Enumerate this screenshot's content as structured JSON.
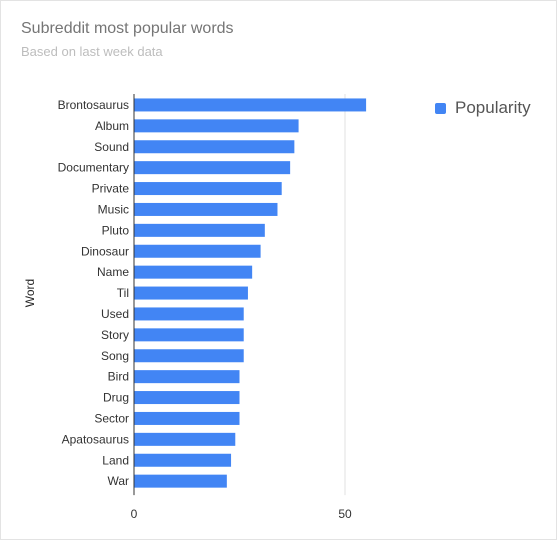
{
  "header": {
    "title": "Subreddit most popular words",
    "subtitle": "Based on last week data"
  },
  "legend": {
    "label": "Popularity",
    "color": "#4285f4"
  },
  "chart_data": {
    "type": "bar",
    "orientation": "horizontal",
    "title": "Subreddit most popular words",
    "subtitle": "Based on last week data",
    "xlabel": "",
    "ylabel": "Word",
    "categories": [
      "Brontosaurus",
      "Album",
      "Sound",
      "Documentary",
      "Private",
      "Music",
      "Pluto",
      "Dinosaur",
      "Name",
      "Til",
      "Used",
      "Story",
      "Song",
      "Bird",
      "Drug",
      "Sector",
      "Apatosaurus",
      "Land",
      "War"
    ],
    "series": [
      {
        "name": "Popularity",
        "color": "#4285f4",
        "values": [
          55,
          39,
          38,
          37,
          35,
          34,
          31,
          30,
          28,
          27,
          26,
          26,
          26,
          25,
          25,
          25,
          24,
          23,
          22
        ]
      }
    ],
    "xlim": [
      0,
      100
    ],
    "xticks": [
      0,
      50
    ],
    "grid": true,
    "legend_position": "top-right"
  }
}
